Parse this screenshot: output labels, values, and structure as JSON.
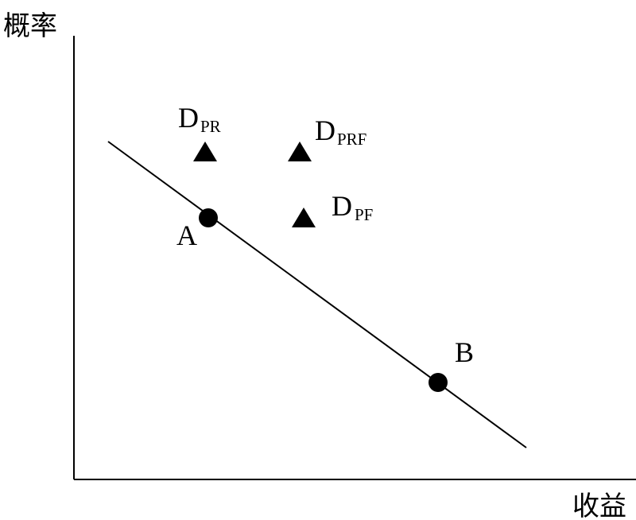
{
  "axes": {
    "y_label": "概率",
    "x_label": "收益"
  },
  "points": [
    {
      "label": "A"
    },
    {
      "label": "B"
    }
  ],
  "triangles": [
    {
      "label": "D",
      "subscript": "PR"
    },
    {
      "label": "D",
      "subscript": "PRF"
    },
    {
      "label": "D",
      "subscript": "PF"
    }
  ]
}
